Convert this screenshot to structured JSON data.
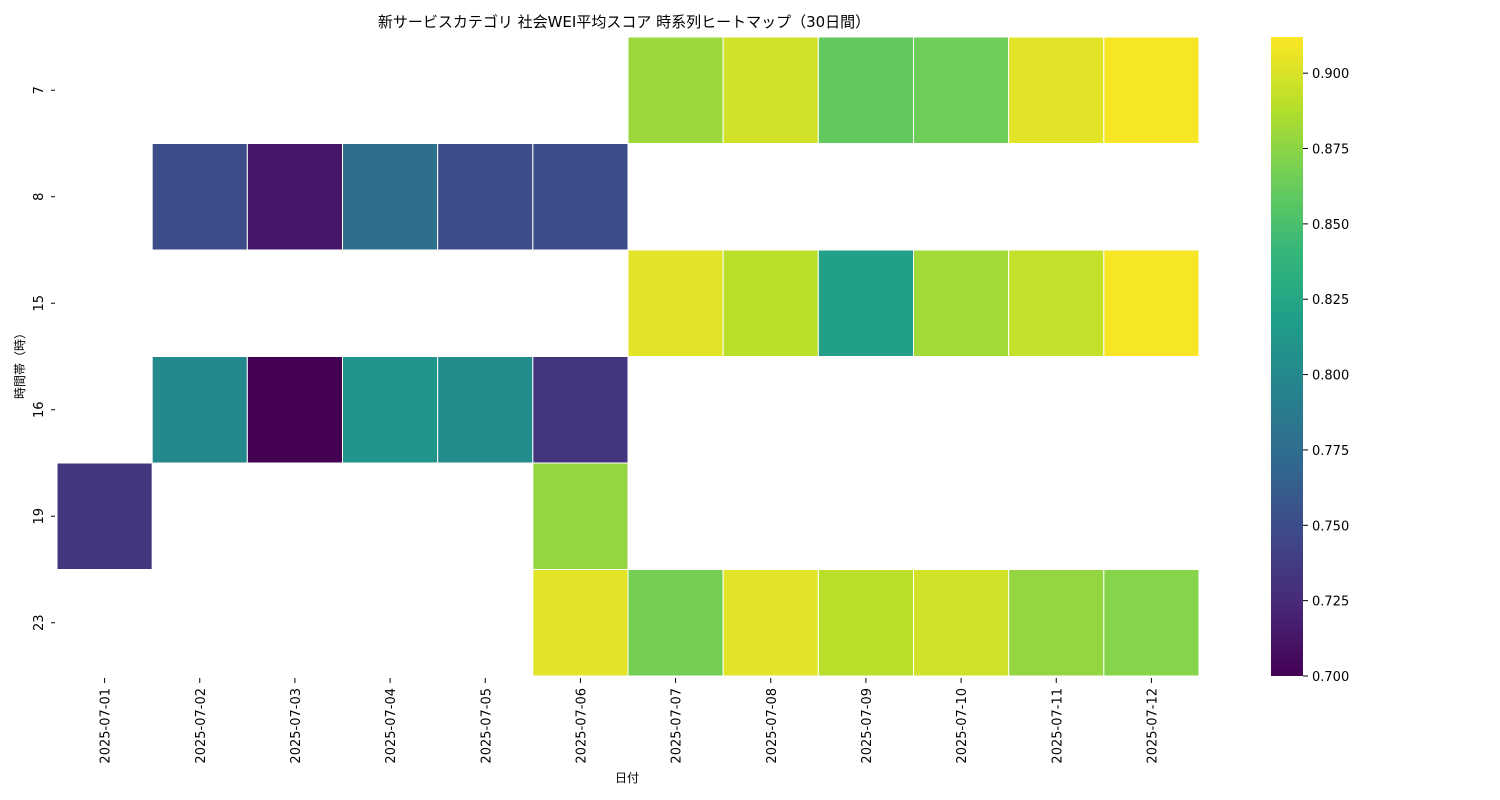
{
  "chart_data": {
    "type": "heatmap",
    "title": "新サービスカテゴリ 社会WEI平均スコア 時系列ヒートマップ（30日間）",
    "xlabel": "日付",
    "ylabel": "時間帯（時）",
    "x_categories": [
      "2025-07-01",
      "2025-07-02",
      "2025-07-03",
      "2025-07-04",
      "2025-07-05",
      "2025-07-06",
      "2025-07-07",
      "2025-07-08",
      "2025-07-09",
      "2025-07-10",
      "2025-07-11",
      "2025-07-12"
    ],
    "y_categories": [
      "7",
      "8",
      "15",
      "16",
      "19",
      "23"
    ],
    "values": [
      [
        null,
        null,
        null,
        null,
        null,
        null,
        0.88,
        0.898,
        0.86,
        0.865,
        0.903,
        0.91
      ],
      [
        null,
        0.75,
        0.713,
        0.777,
        0.75,
        0.75,
        null,
        null,
        null,
        null,
        null,
        null
      ],
      [
        null,
        null,
        null,
        null,
        null,
        null,
        0.903,
        0.89,
        0.82,
        0.882,
        0.893,
        0.91
      ],
      [
        null,
        0.8,
        0.7,
        0.81,
        0.803,
        0.733,
        null,
        null,
        null,
        null,
        null,
        null
      ],
      [
        0.733,
        null,
        null,
        null,
        null,
        0.877,
        null,
        null,
        null,
        null,
        null,
        null
      ],
      [
        null,
        null,
        null,
        null,
        null,
        0.903,
        0.867,
        0.903,
        0.89,
        0.898,
        0.877,
        0.873
      ]
    ],
    "colormap": "viridis",
    "vmin": 0.7,
    "vmax": 0.912,
    "colorbar_ticks": [
      "0.700",
      "0.725",
      "0.750",
      "0.775",
      "0.800",
      "0.825",
      "0.850",
      "0.875",
      "0.900"
    ]
  }
}
